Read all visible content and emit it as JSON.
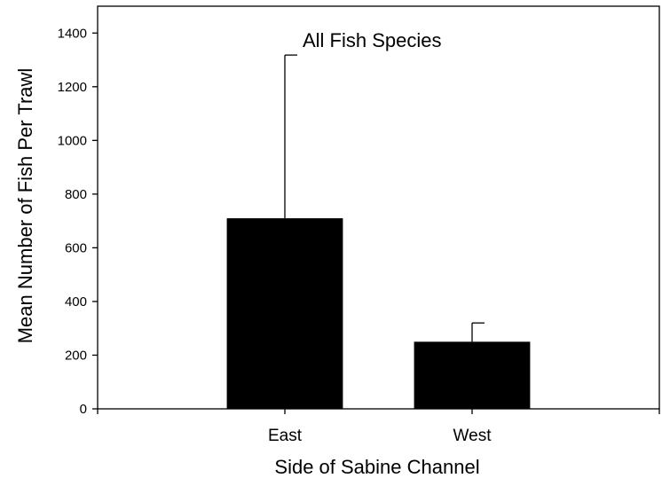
{
  "chart_data": {
    "type": "bar",
    "title": "All Fish Species",
    "xlabel": "Side of Sabine Channel",
    "ylabel": "Mean Number of Fish Per Trawl",
    "categories": [
      "East",
      "West"
    ],
    "values": [
      710,
      250
    ],
    "error_upper": [
      1318,
      320
    ],
    "ylim": [
      0,
      1500
    ],
    "yticks": [
      0,
      200,
      400,
      600,
      800,
      1000,
      1200,
      1400
    ],
    "bar_color": "#000000",
    "grid": false,
    "legend": "none"
  }
}
